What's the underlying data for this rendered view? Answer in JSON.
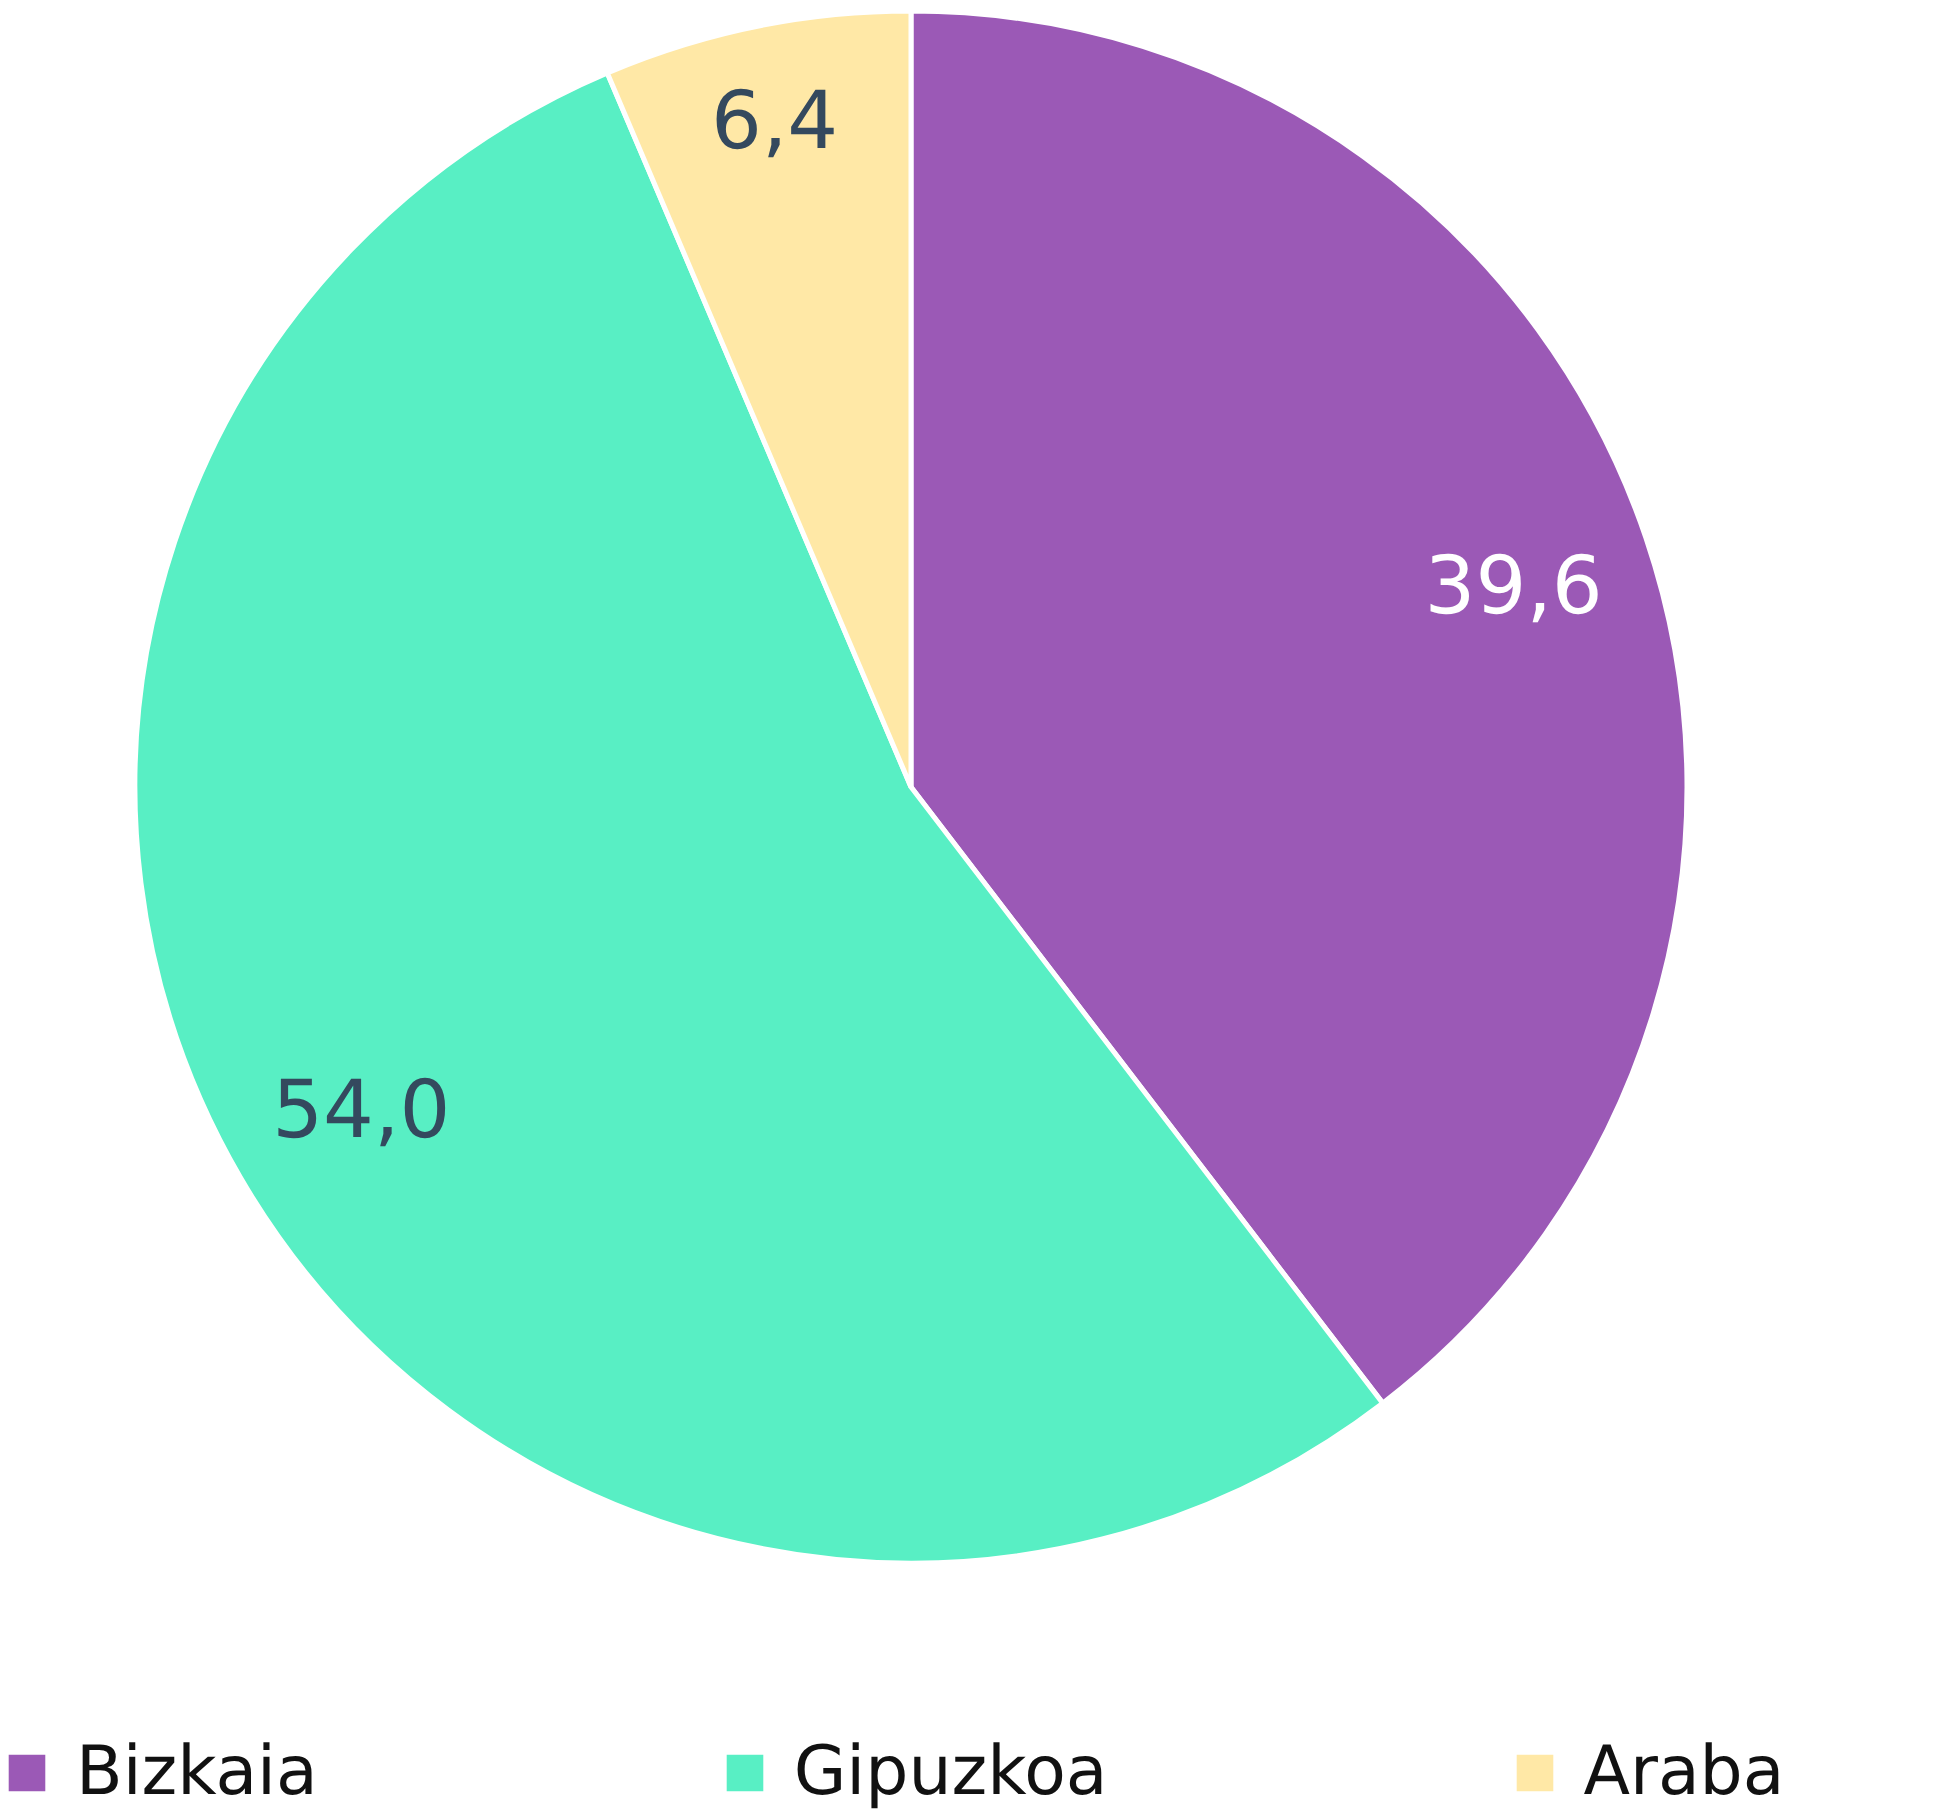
{
  "chart_data": {
    "type": "pie",
    "categories": [
      "Bizkaia",
      "Gipuzkoa",
      "Araba"
    ],
    "values": [
      39.6,
      54.0,
      6.4
    ],
    "colors": [
      "#9b59b6",
      "#58efc4",
      "#ffe8a6"
    ],
    "value_labels": [
      "39,6",
      "54,0",
      "6,4"
    ],
    "legend": "bottom"
  }
}
